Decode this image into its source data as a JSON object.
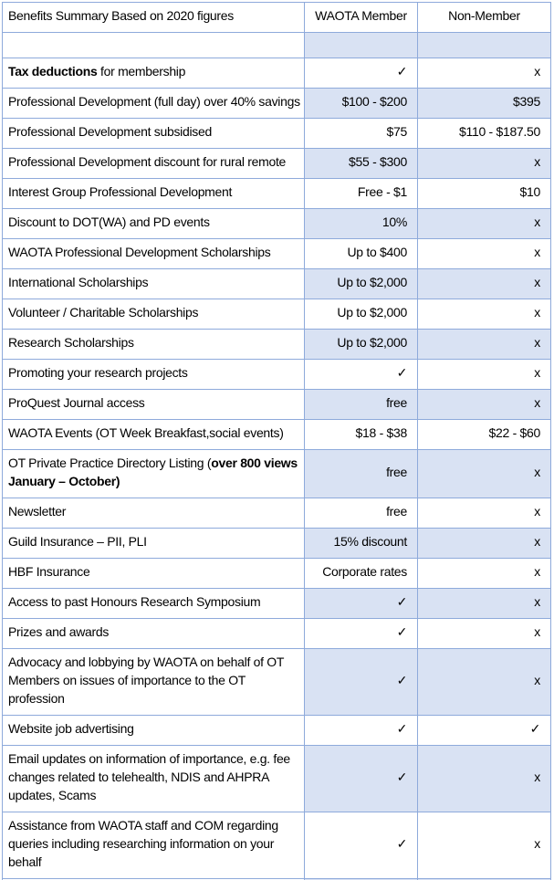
{
  "table": {
    "header": {
      "benefits": "Benefits Summary Based on 2020 figures",
      "member": "WAOTA Member",
      "nonmember": "Non-Member"
    },
    "symbols": {
      "check": "✓",
      "cross": "x"
    },
    "colors": {
      "row_shade": "#d9e2f3",
      "border": "#8eaadb",
      "text": "#000000"
    },
    "rows": [
      {
        "kind": "spacer",
        "label_parts": [],
        "member": "",
        "nonmember": ""
      },
      {
        "label_parts": [
          {
            "text": "Tax deductions",
            "bold": true
          },
          {
            "text": " for membership",
            "bold": false
          }
        ],
        "member": "✓",
        "nonmember": "x"
      },
      {
        "label_parts": [
          {
            "text": "Professional Development (full day) over 40% savings",
            "bold": false
          }
        ],
        "member": "$100 - $200",
        "nonmember": "$395"
      },
      {
        "label_parts": [
          {
            "text": "Professional Development subsidised",
            "bold": false
          }
        ],
        "member": "$75",
        "nonmember": "$110 - $187.50"
      },
      {
        "label_parts": [
          {
            "text": "Professional Development discount for rural remote",
            "bold": false
          }
        ],
        "member": "$55 - $300",
        "nonmember": "x"
      },
      {
        "label_parts": [
          {
            "text": "Interest Group Professional Development",
            "bold": false
          }
        ],
        "member": "Free - $1",
        "nonmember": "$10"
      },
      {
        "label_parts": [
          {
            "text": "Discount to DOT(WA) and PD events",
            "bold": false
          }
        ],
        "member": "10%",
        "nonmember": "x"
      },
      {
        "label_parts": [
          {
            "text": "WAOTA Professional Development Scholarships",
            "bold": false
          }
        ],
        "member": "Up to $400",
        "nonmember": "x"
      },
      {
        "label_parts": [
          {
            "text": "International Scholarships",
            "bold": false
          }
        ],
        "member": "Up to $2,000",
        "nonmember": "x"
      },
      {
        "label_parts": [
          {
            "text": "Volunteer / Charitable Scholarships",
            "bold": false
          }
        ],
        "member": "Up to $2,000",
        "nonmember": "x"
      },
      {
        "label_parts": [
          {
            "text": "Research Scholarships",
            "bold": false
          }
        ],
        "member": "Up to $2,000",
        "nonmember": "x"
      },
      {
        "label_parts": [
          {
            "text": "Promoting your research projects",
            "bold": false
          }
        ],
        "member": "✓",
        "nonmember": "x"
      },
      {
        "label_parts": [
          {
            "text": "ProQuest Journal access",
            "bold": false
          }
        ],
        "member": "free",
        "nonmember": "x"
      },
      {
        "label_parts": [
          {
            "text": "WAOTA Events (OT Week Breakfast,social events)",
            "bold": false
          }
        ],
        "member": "$18 - $38",
        "nonmember": "$22 - $60"
      },
      {
        "label_parts": [
          {
            "text": "OT Private Practice Directory Listing (",
            "bold": false
          },
          {
            "text": "over 800 views January – October)",
            "bold": true
          }
        ],
        "member": "free",
        "nonmember": "x"
      },
      {
        "label_parts": [
          {
            "text": "Newsletter",
            "bold": false
          }
        ],
        "member": "free",
        "nonmember": "x"
      },
      {
        "label_parts": [
          {
            "text": "Guild Insurance – PII, PLI",
            "bold": false
          }
        ],
        "member": "15% discount",
        "nonmember": "x"
      },
      {
        "label_parts": [
          {
            "text": "HBF Insurance",
            "bold": false
          }
        ],
        "member": "Corporate rates",
        "nonmember": "x"
      },
      {
        "label_parts": [
          {
            "text": "Access to past Honours Research Symposium",
            "bold": false
          }
        ],
        "member": "✓",
        "nonmember": "x"
      },
      {
        "label_parts": [
          {
            "text": "Prizes and awards",
            "bold": false
          }
        ],
        "member": "✓",
        "nonmember": "x"
      },
      {
        "label_parts": [
          {
            "text": "Advocacy and lobbying by WAOTA on behalf of OT Members on issues of importance to the OT profession",
            "bold": false
          }
        ],
        "member": "✓",
        "nonmember": "x"
      },
      {
        "label_parts": [
          {
            "text": "Website job advertising",
            "bold": false
          }
        ],
        "member": "✓",
        "nonmember": "✓"
      },
      {
        "label_parts": [
          {
            "text": "Email updates on information of importance, e.g. fee changes related to telehealth, NDIS and AHPRA updates, Scams",
            "bold": false
          }
        ],
        "member": "✓",
        "nonmember": "x"
      },
      {
        "label_parts": [
          {
            "text": "Assistance from WAOTA staff and COM regarding queries including researching information on your behalf",
            "bold": false
          }
        ],
        "member": "✓",
        "nonmember": "x"
      },
      {
        "kind": "partial",
        "label_parts": [],
        "member": "",
        "nonmember": ""
      }
    ]
  }
}
